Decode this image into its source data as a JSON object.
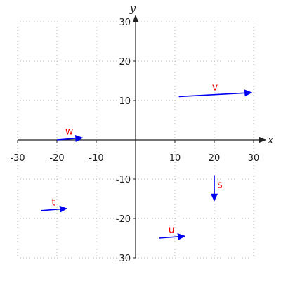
{
  "chart_data": {
    "type": "vector_field",
    "xlim": [
      -30,
      30
    ],
    "ylim": [
      -30,
      30
    ],
    "xticks": [
      -30,
      -20,
      -10,
      10,
      20,
      30
    ],
    "yticks": [
      -30,
      -20,
      -10,
      10,
      20,
      30
    ],
    "xlabel": "x",
    "ylabel": "y",
    "grid": true,
    "vectors": [
      {
        "label": "v",
        "start": [
          11,
          11
        ],
        "end": [
          29.5,
          12
        ]
      },
      {
        "label": "w",
        "start": [
          -20,
          0
        ],
        "end": [
          -13.5,
          0.5
        ]
      },
      {
        "label": "t",
        "start": [
          -24,
          -18
        ],
        "end": [
          -17.5,
          -17.5
        ]
      },
      {
        "label": "s",
        "start": [
          20,
          -9
        ],
        "end": [
          20,
          -15.5
        ]
      },
      {
        "label": "u",
        "start": [
          6,
          -25
        ],
        "end": [
          12.5,
          -24.5
        ]
      }
    ],
    "colors": {
      "arrow": "#0000ee",
      "label": "#ee0000",
      "axis": "#222222",
      "grid": "#bbbbbb"
    }
  }
}
